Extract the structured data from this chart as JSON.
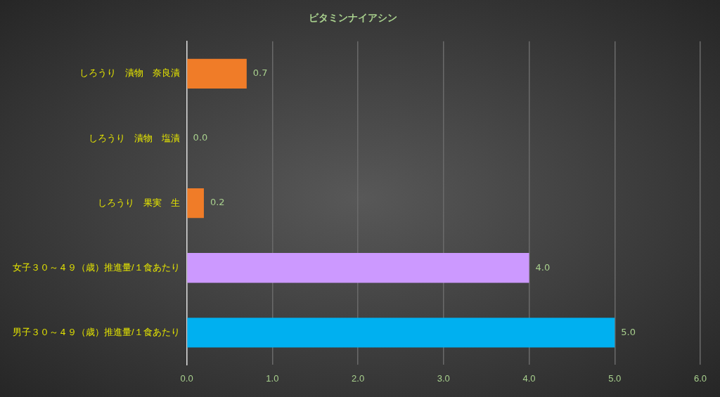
{
  "chart_data": {
    "type": "bar",
    "orientation": "horizontal",
    "title": "ビタミンナイアシン",
    "categories": [
      "しろうり　漬物　奈良漬",
      "しろうり　漬物　塩漬",
      "しろうり　果実　生",
      "女子３０～４９（歳）推進量/１食あたり",
      "男子３０～４９（歳）推進量/１食あたり"
    ],
    "values": [
      0.7,
      0.0,
      0.2,
      4.0,
      5.0
    ],
    "colors": [
      "#f07c28",
      "#f07c28",
      "#f07c28",
      "#cc99ff",
      "#00b0f0"
    ],
    "value_labels": [
      "0.7",
      "0.0",
      "0.2",
      "4.0",
      "5.0"
    ],
    "xlim": [
      0,
      6
    ],
    "xticks": [
      {
        "value": 0,
        "label": "0.0"
      },
      {
        "value": 1,
        "label": "1.0"
      },
      {
        "value": 2,
        "label": "2.0"
      },
      {
        "value": 3,
        "label": "3.0"
      },
      {
        "value": 4,
        "label": "4.0"
      },
      {
        "value": 5,
        "label": "5.0"
      },
      {
        "value": 6,
        "label": "6.0"
      }
    ],
    "grid": "x",
    "legend": false
  }
}
